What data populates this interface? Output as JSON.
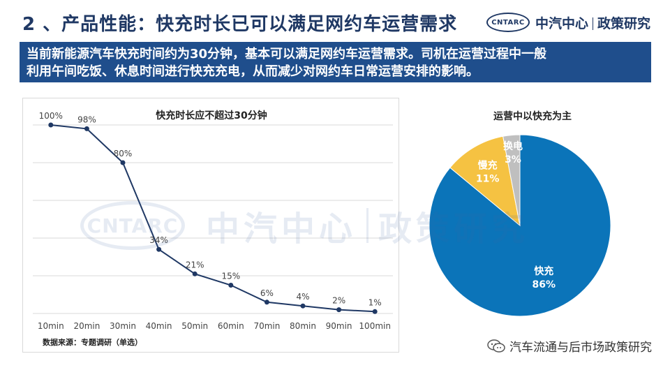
{
  "header": {
    "title": "2 、产品性能：快充时长已可以满足网约车运营需求",
    "logo_badge": "CNTARC",
    "logo_org": "中汽中心",
    "logo_dept": "政策研究"
  },
  "banner": {
    "line1": "当前新能源汽车快充时间约为30分钟，基本可以满足网约车运营需求。司机在运营过程中一般",
    "line2": "利用午间吃饭、休息时间进行快充充电，从而减少对网约车日常运营安排的影响。"
  },
  "watermark": {
    "badge": "CNTARC",
    "org": "中汽中心",
    "dept": "政策研究"
  },
  "source_note": "数据来源：专题调研（单选）",
  "footer_brand": "汽车流通与后市场政策研究",
  "colors": {
    "primary": "#1f4e8c",
    "line": "#1f3864",
    "fast": "#0b74b9",
    "slow": "#f5c242",
    "swap": "#bfbfbf"
  },
  "chart_data": [
    {
      "type": "line",
      "title": "快充时长应不超过30分钟",
      "categories": [
        "10min",
        "20min",
        "30min",
        "40min",
        "50min",
        "60min",
        "70min",
        "80min",
        "90min",
        "100min"
      ],
      "values": [
        100,
        98,
        80,
        34,
        21,
        15,
        6,
        4,
        2,
        1
      ],
      "labels": [
        "100%",
        "98%",
        "80%",
        "34%",
        "21%",
        "15%",
        "6%",
        "4%",
        "2%",
        "1%"
      ],
      "ylim": [
        0,
        100
      ],
      "grid": true,
      "xlabel": "",
      "ylabel": ""
    },
    {
      "type": "pie",
      "title": "运营中以快充为主",
      "slices": [
        {
          "name": "快充",
          "value": 86,
          "label": "86%"
        },
        {
          "name": "慢充",
          "value": 11,
          "label": "11%"
        },
        {
          "name": "换电",
          "value": 3,
          "label": "3%"
        }
      ]
    }
  ]
}
